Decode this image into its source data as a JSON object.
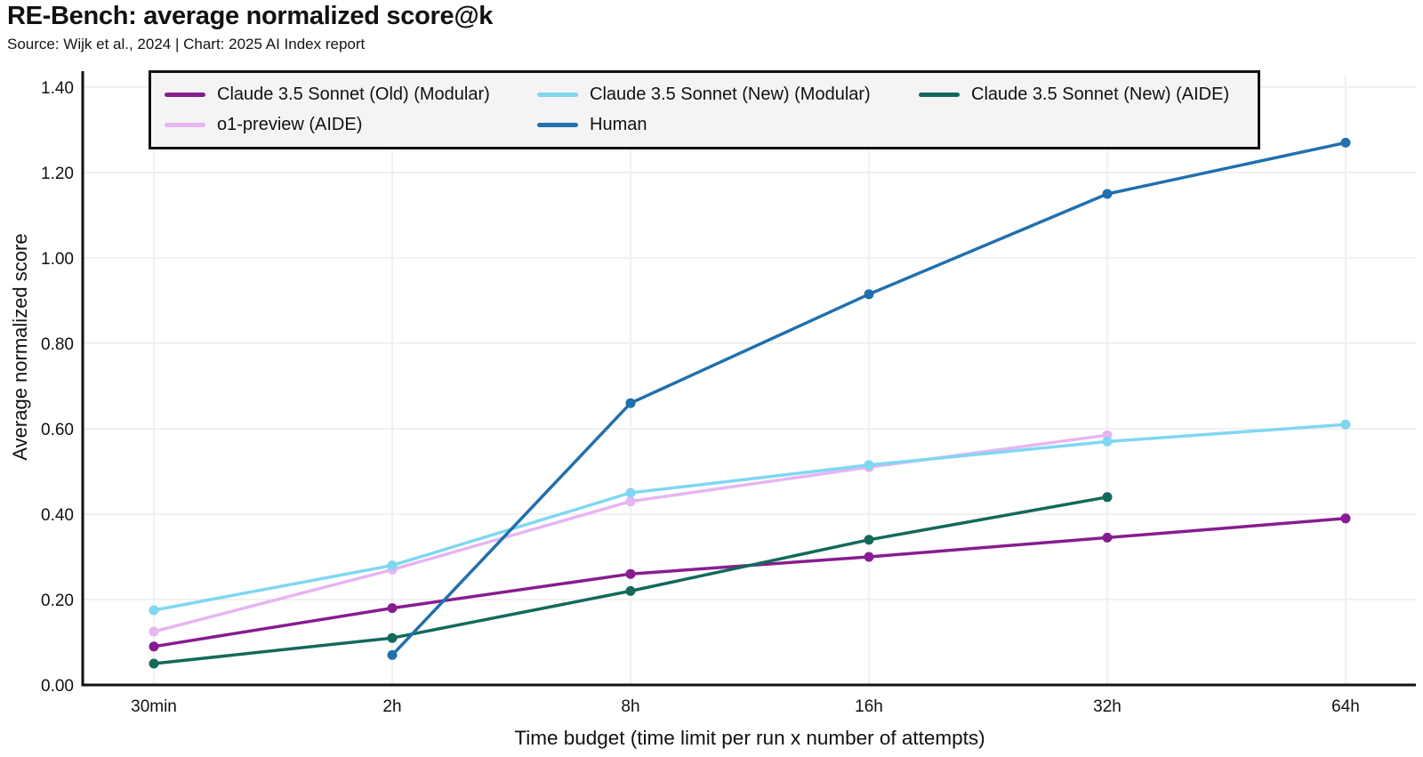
{
  "header": {
    "title": "RE-Bench: average normalized score@k",
    "subtitle": "Source: Wijk et al., 2024 | Chart: 2025 AI Index report"
  },
  "chart_data": {
    "type": "line",
    "title": "RE-Bench: average normalized score@k",
    "subtitle": "Source: Wijk et al., 2024 | Chart: 2025 AI Index report",
    "xlabel": "Time budget (time limit per run x number of attempts)",
    "ylabel": "Average normalized score",
    "categories": [
      "30min",
      "2h",
      "8h",
      "16h",
      "32h",
      "64h"
    ],
    "ylim": [
      0,
      1.4
    ],
    "ytick_step": 0.2,
    "ytick_labels": [
      "0.00",
      "0.20",
      "0.40",
      "0.60",
      "0.80",
      "1.00",
      "1.20",
      "1.40"
    ],
    "grid": true,
    "legend_position": "top",
    "colors": {
      "accent_axis": "#111111",
      "gridline": "#f2f0f1",
      "legend_background": "#f5f4f4"
    },
    "series": [
      {
        "name": "Claude 3.5 Sonnet (Old) (Modular)",
        "color": "#871d90",
        "values": [
          0.09,
          0.18,
          0.26,
          0.3,
          0.345,
          0.39
        ]
      },
      {
        "name": "Claude 3.5 Sonnet (New) (Modular)",
        "color": "#7fd7f2",
        "values": [
          0.175,
          0.28,
          0.45,
          0.515,
          0.57,
          0.61
        ]
      },
      {
        "name": "Claude 3.5 Sonnet (New) (AIDE)",
        "color": "#13695b",
        "values": [
          0.05,
          0.11,
          0.22,
          0.34,
          0.44,
          null
        ]
      },
      {
        "name": "o1-preview (AIDE)",
        "color": "#e7b5f2",
        "values": [
          0.125,
          0.27,
          0.43,
          0.51,
          0.585,
          null
        ]
      },
      {
        "name": "Human",
        "color": "#2070ad",
        "values": [
          null,
          0.07,
          0.66,
          0.915,
          1.15,
          1.27
        ]
      }
    ]
  }
}
